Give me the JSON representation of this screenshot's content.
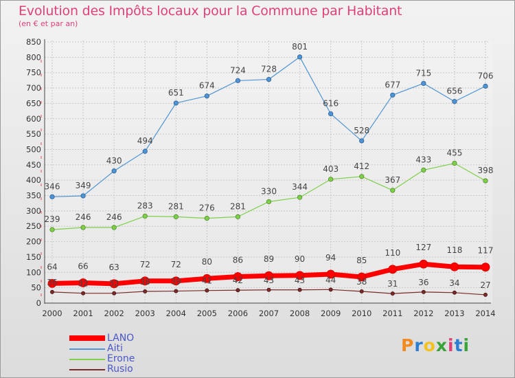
{
  "title": "Evolution des Impôts locaux pour la Commune par Habitant",
  "subtitle": "(en € et par an)",
  "logo": {
    "text": "Proxiti",
    "colors": [
      "#f28a1e",
      "#2e7dd1",
      "#f2c21e",
      "#3aa43a",
      "#e0407a",
      "#2e7dd1",
      "#3aa43a"
    ]
  },
  "colors": {
    "LANO": "#ff0000",
    "Aiti": "#4f94d4",
    "Erone": "#7fcf4a",
    "Rusio": "#7a2a2a",
    "title": "#e0407a",
    "legend_text": "#4a56c8"
  },
  "chart_data": {
    "type": "line",
    "title": "Evolution des Impôts locaux pour la Commune par Habitant",
    "subtitle": "(en € et par an)",
    "x": [
      "2000",
      "2001",
      "2002",
      "2003",
      "2004",
      "2005",
      "2006",
      "2007",
      "2008",
      "2009",
      "2010",
      "2011",
      "2012",
      "2013",
      "2014"
    ],
    "ylim": [
      0,
      850
    ],
    "yticks": [
      0,
      50,
      100,
      150,
      200,
      250,
      300,
      350,
      400,
      450,
      500,
      550,
      600,
      650,
      700,
      750,
      800,
      850
    ],
    "grid": true,
    "legend_position": "bottom-left",
    "series": [
      {
        "name": "LANO",
        "values": [
          64,
          66,
          63,
          72,
          72,
          80,
          86,
          89,
          90,
          94,
          85,
          110,
          127,
          118,
          117
        ]
      },
      {
        "name": "Aiti",
        "values": [
          346,
          349,
          430,
          494,
          651,
          674,
          724,
          728,
          801,
          616,
          528,
          677,
          715,
          656,
          706
        ]
      },
      {
        "name": "Erone",
        "values": [
          239,
          246,
          246,
          283,
          281,
          276,
          281,
          330,
          344,
          403,
          412,
          367,
          433,
          455,
          398
        ]
      },
      {
        "name": "Rusio",
        "values": [
          36,
          32,
          32,
          38,
          39,
          41,
          42,
          43,
          43,
          44,
          38,
          31,
          36,
          34,
          27
        ]
      }
    ]
  },
  "legend": [
    {
      "name": "LANO",
      "label": "LANO"
    },
    {
      "name": "Aiti",
      "label": "Aiti"
    },
    {
      "name": "Erone",
      "label": "Erone"
    },
    {
      "name": "Rusio",
      "label": "Rusio"
    }
  ]
}
